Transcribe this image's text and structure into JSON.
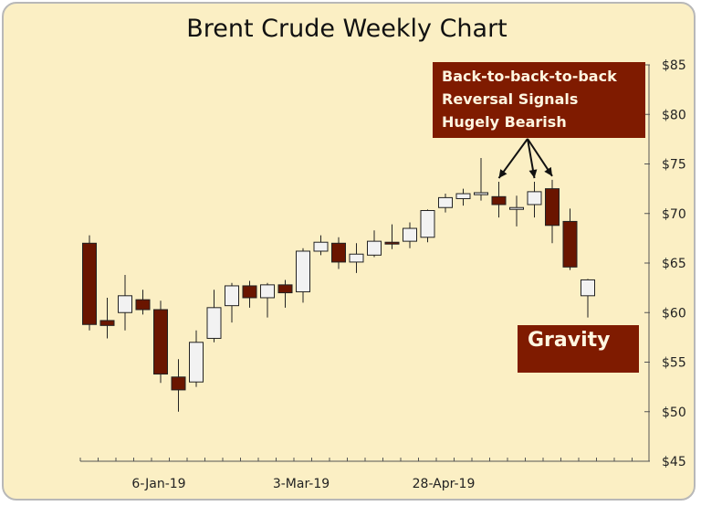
{
  "chart_data": {
    "type": "candlestick",
    "title": "Brent Crude Weekly Chart",
    "xlabel": "",
    "ylabel": "",
    "ylim": [
      45,
      85
    ],
    "y_ticks": [
      "$45",
      "$50",
      "$55",
      "$60",
      "$65",
      "$70",
      "$75",
      "$80",
      "$85"
    ],
    "x_tick_labels": [
      {
        "index": 4,
        "label": "6-Jan-19"
      },
      {
        "index": 12,
        "label": "3-Mar-19"
      },
      {
        "index": 20,
        "label": "28-Apr-19"
      }
    ],
    "colors": {
      "up": "#f2f2f2",
      "down": "#6a1500",
      "outline": "#222222"
    },
    "candles": [
      {
        "open": 67.0,
        "high": 67.8,
        "low": 58.2,
        "close": 58.8
      },
      {
        "open": 59.2,
        "high": 61.5,
        "low": 57.4,
        "close": 58.7
      },
      {
        "open": 60.0,
        "high": 63.8,
        "low": 58.2,
        "close": 61.7
      },
      {
        "open": 61.3,
        "high": 62.3,
        "low": 59.8,
        "close": 60.3
      },
      {
        "open": 60.3,
        "high": 61.2,
        "low": 52.9,
        "close": 53.8
      },
      {
        "open": 53.5,
        "high": 55.3,
        "low": 50.0,
        "close": 52.2
      },
      {
        "open": 53.0,
        "high": 58.2,
        "low": 52.5,
        "close": 57.0
      },
      {
        "open": 57.4,
        "high": 62.3,
        "low": 57.0,
        "close": 60.5
      },
      {
        "open": 60.7,
        "high": 63.0,
        "low": 59.0,
        "close": 62.7
      },
      {
        "open": 62.7,
        "high": 63.2,
        "low": 60.5,
        "close": 61.5
      },
      {
        "open": 61.5,
        "high": 63.0,
        "low": 59.5,
        "close": 62.8
      },
      {
        "open": 62.8,
        "high": 63.3,
        "low": 60.5,
        "close": 62.0
      },
      {
        "open": 62.1,
        "high": 66.5,
        "low": 61.0,
        "close": 66.2
      },
      {
        "open": 66.2,
        "high": 67.8,
        "low": 65.8,
        "close": 67.1
      },
      {
        "open": 67.0,
        "high": 67.6,
        "low": 64.4,
        "close": 65.1
      },
      {
        "open": 65.1,
        "high": 67.0,
        "low": 64.0,
        "close": 65.9
      },
      {
        "open": 65.8,
        "high": 68.3,
        "low": 65.6,
        "close": 67.2
      },
      {
        "open": 67.1,
        "high": 68.9,
        "low": 66.4,
        "close": 67.0
      },
      {
        "open": 67.2,
        "high": 69.1,
        "low": 66.5,
        "close": 68.5
      },
      {
        "open": 67.6,
        "high": 70.4,
        "low": 67.1,
        "close": 70.3
      },
      {
        "open": 70.6,
        "high": 72.0,
        "low": 70.1,
        "close": 71.6
      },
      {
        "open": 71.5,
        "high": 72.5,
        "low": 70.8,
        "close": 72.0
      },
      {
        "open": 71.9,
        "high": 75.6,
        "low": 71.3,
        "close": 72.1
      },
      {
        "open": 71.7,
        "high": 73.2,
        "low": 69.6,
        "close": 70.9
      },
      {
        "open": 70.5,
        "high": 71.8,
        "low": 68.7,
        "close": 70.6
      },
      {
        "open": 70.9,
        "high": 73.2,
        "low": 69.6,
        "close": 72.2
      },
      {
        "open": 72.5,
        "high": 73.4,
        "low": 67.0,
        "close": 68.8
      },
      {
        "open": 69.2,
        "high": 70.5,
        "low": 64.3,
        "close": 64.6
      },
      {
        "open": 61.7,
        "high": 63.4,
        "low": 59.5,
        "close": 63.3
      }
    ],
    "annotations": [
      {
        "lines": [
          "Back-to-back-to-back",
          "Reversal Signals",
          "Hugely Bearish"
        ]
      },
      {
        "lines": [
          "Gravity"
        ]
      }
    ]
  }
}
